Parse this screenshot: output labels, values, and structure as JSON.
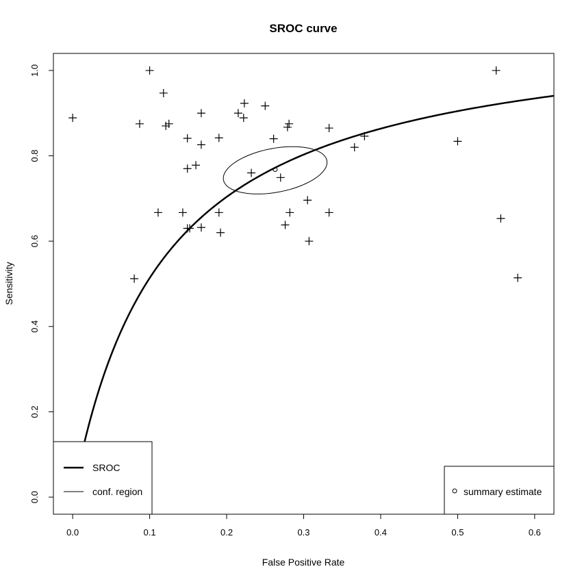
{
  "chart_data": {
    "type": "scatter",
    "title": "SROC curve",
    "xlabel": "False Positive Rate",
    "ylabel": "Sensitivity",
    "xlim": [
      -0.025,
      0.625
    ],
    "ylim": [
      -0.04,
      1.04
    ],
    "x_ticks": [
      0.0,
      0.1,
      0.2,
      0.3,
      0.4,
      0.5,
      0.6
    ],
    "x_tick_labels": [
      "0.0",
      "0.1",
      "0.2",
      "0.3",
      "0.4",
      "0.5",
      "0.6"
    ],
    "y_ticks": [
      0.0,
      0.2,
      0.4,
      0.6,
      0.8,
      1.0
    ],
    "y_tick_labels": [
      "0.0",
      "0.2",
      "0.4",
      "0.6",
      "0.8",
      "1.0"
    ],
    "grid": false,
    "series": [
      {
        "name": "studies",
        "marker": "plus",
        "points": [
          [
            0.0,
            0.889
          ],
          [
            0.1,
            1.0
          ],
          [
            0.118,
            0.947
          ],
          [
            0.087,
            0.875
          ],
          [
            0.121,
            0.87
          ],
          [
            0.125,
            0.875
          ],
          [
            0.167,
            0.9
          ],
          [
            0.215,
            0.9
          ],
          [
            0.223,
            0.923
          ],
          [
            0.222,
            0.889
          ],
          [
            0.25,
            0.917
          ],
          [
            0.279,
            0.867
          ],
          [
            0.281,
            0.875
          ],
          [
            0.333,
            0.865
          ],
          [
            0.149,
            0.841
          ],
          [
            0.167,
            0.826
          ],
          [
            0.19,
            0.842
          ],
          [
            0.261,
            0.84
          ],
          [
            0.366,
            0.82
          ],
          [
            0.379,
            0.846
          ],
          [
            0.149,
            0.77
          ],
          [
            0.16,
            0.778
          ],
          [
            0.232,
            0.76
          ],
          [
            0.27,
            0.749
          ],
          [
            0.111,
            0.667
          ],
          [
            0.143,
            0.667
          ],
          [
            0.149,
            0.63
          ],
          [
            0.152,
            0.63
          ],
          [
            0.167,
            0.632
          ],
          [
            0.19,
            0.667
          ],
          [
            0.192,
            0.62
          ],
          [
            0.276,
            0.638
          ],
          [
            0.282,
            0.667
          ],
          [
            0.305,
            0.696
          ],
          [
            0.307,
            0.6
          ],
          [
            0.333,
            0.667
          ],
          [
            0.08,
            0.512
          ],
          [
            0.55,
            1.0
          ],
          [
            0.5,
            0.834
          ],
          [
            0.556,
            0.653
          ],
          [
            0.578,
            0.514
          ]
        ]
      },
      {
        "name": "SROC",
        "type": "line",
        "curve": {
          "diagnostic_odds_ratio": 9.5,
          "x_from": 0.01,
          "x_to": 0.625
        }
      },
      {
        "name": "conf. region",
        "type": "ellipse",
        "center": [
          0.263,
          0.766
        ],
        "axis1": [
          0.067,
          0.024
        ],
        "axis2": [
          -0.007,
          0.05
        ]
      },
      {
        "name": "summary estimate",
        "marker": "circle",
        "points": [
          [
            0.263,
            0.768
          ]
        ]
      }
    ],
    "legends": [
      {
        "placement": "bottom-left",
        "entries": [
          {
            "label": "SROC",
            "style": "thick-line"
          },
          {
            "label": "conf. region",
            "style": "thin-line"
          }
        ]
      },
      {
        "placement": "bottom-right",
        "entries": [
          {
            "label": "summary estimate",
            "style": "circle"
          }
        ]
      }
    ]
  }
}
